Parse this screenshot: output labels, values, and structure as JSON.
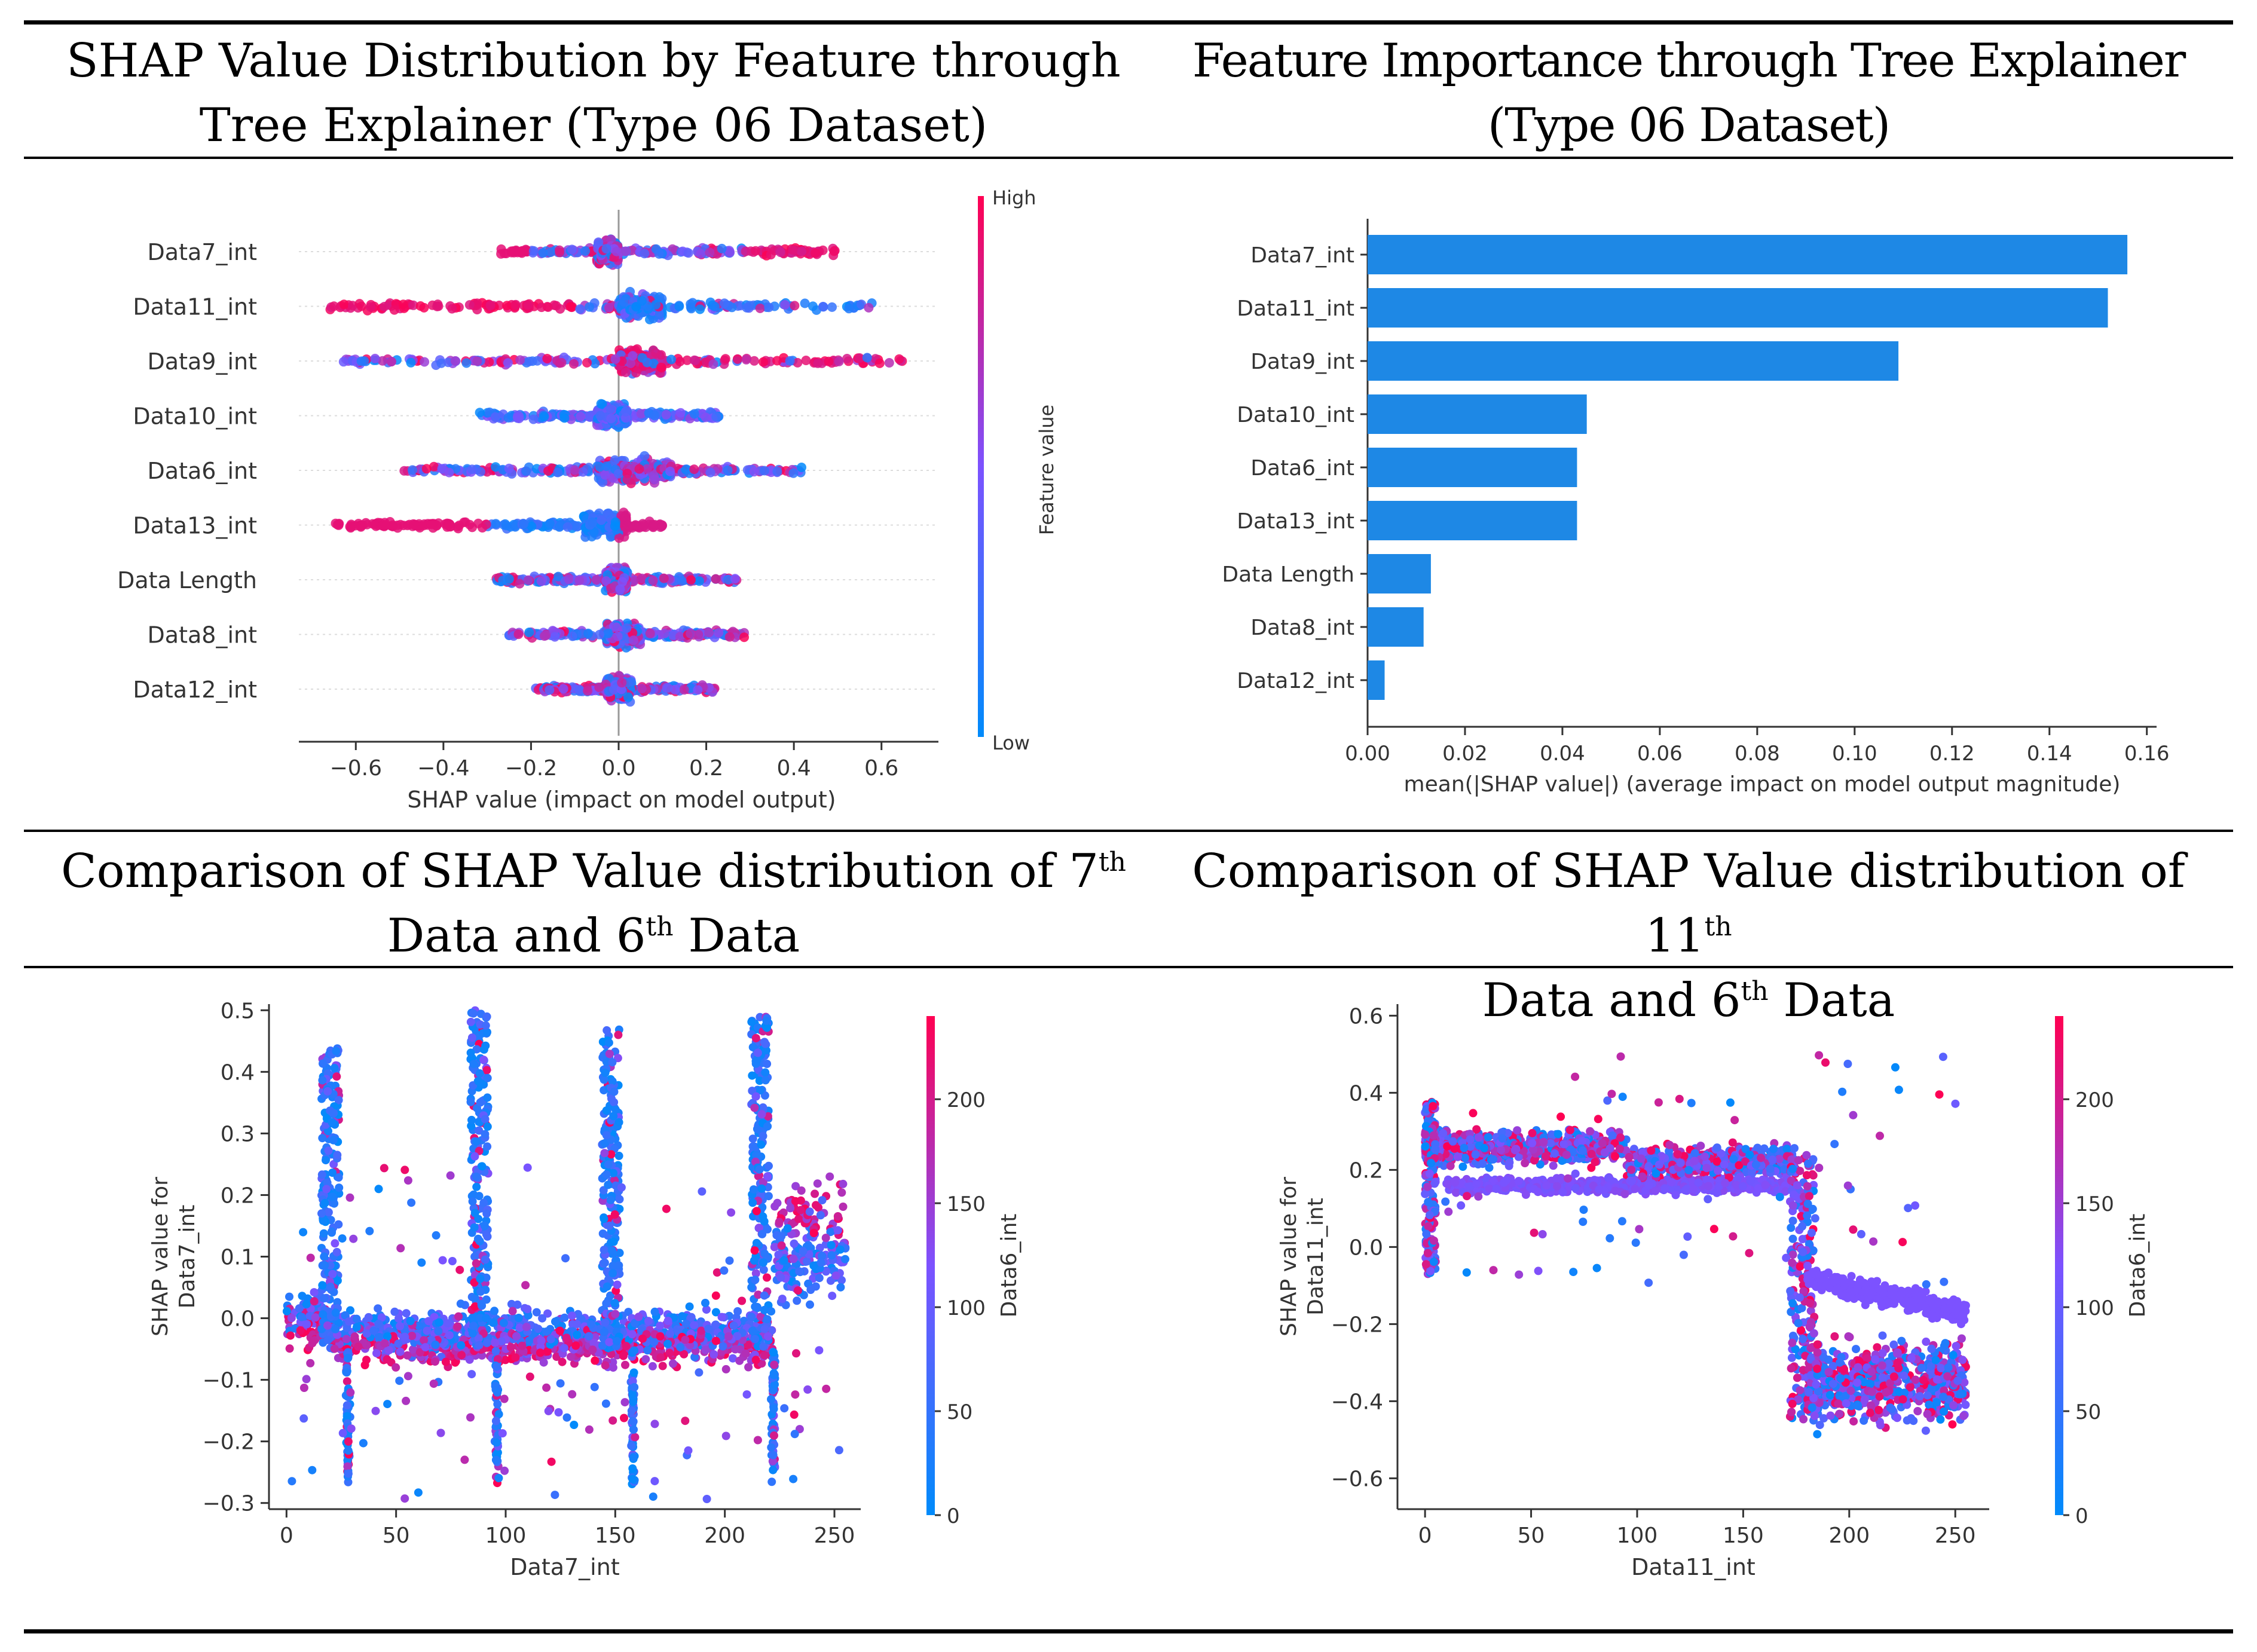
{
  "captions": {
    "top_left_line1": "SHAP Value Distribution by Feature through",
    "top_left_line2": "Tree Explainer (Type 06 Dataset)",
    "top_right_line1": "Feature Importance through Tree Explainer",
    "top_right_line2": "(Type 06 Dataset)",
    "bottom_left_pre": "Comparison of SHAP Value distribution of 7",
    "bottom_left_sup": "th",
    "bottom_left_line2_pre": "Data and 6",
    "bottom_left_line2_sup": "th",
    "bottom_left_line2_post": " Data",
    "bottom_right_pre": "Comparison of SHAP Value distribution of 11",
    "bottom_right_sup": "th",
    "bottom_right_line2_pre": "Data and 6",
    "bottom_right_line2_sup": "th",
    "bottom_right_line2_post": " Data"
  },
  "colors": {
    "low": "#008bfb",
    "high": "#ff0052",
    "mid": "#7c52ff",
    "bar": "#1e88e5"
  },
  "chart_data": [
    {
      "id": "beeswarm",
      "type": "scatter",
      "title": "SHAP Value Distribution by Feature through Tree Explainer (Type 06 Dataset)",
      "xlabel": "SHAP value (impact on model output)",
      "xlim": [
        -0.73,
        0.73
      ],
      "xticks": [
        -0.6,
        -0.4,
        -0.2,
        0.0,
        0.2,
        0.4,
        0.6
      ],
      "xtick_labels": [
        "−0.6",
        "−0.4",
        "−0.2",
        "0.0",
        "0.2",
        "0.4",
        "0.6"
      ],
      "features": [
        {
          "name": "Data7_int",
          "min": -0.27,
          "max": 0.5,
          "dense": [
            -0.05,
            0.0
          ],
          "spread": 0.52
        },
        {
          "name": "Data11_int",
          "min": -0.67,
          "max": 0.58,
          "dense": [
            0.0,
            0.1
          ],
          "spread": 0.6
        },
        {
          "name": "Data9_int",
          "min": -0.65,
          "max": 0.65,
          "dense": [
            0.0,
            0.1
          ],
          "spread": 0.58
        },
        {
          "name": "Data10_int",
          "min": -0.32,
          "max": 0.23,
          "dense": [
            -0.05,
            0.02
          ],
          "spread": 0.35
        },
        {
          "name": "Data6_int",
          "min": -0.49,
          "max": 0.42,
          "dense": [
            -0.05,
            0.12
          ],
          "spread": 0.4
        },
        {
          "name": "Data13_int",
          "min": -0.65,
          "max": 0.1,
          "dense": [
            -0.08,
            0.02
          ],
          "spread": 0.4
        },
        {
          "name": "Data Length",
          "min": -0.28,
          "max": 0.27,
          "dense": [
            -0.03,
            0.02
          ],
          "spread": 0.32
        },
        {
          "name": "Data8_int",
          "min": -0.25,
          "max": 0.29,
          "dense": [
            -0.03,
            0.05
          ],
          "spread": 0.3
        },
        {
          "name": "Data12_int",
          "min": -0.19,
          "max": 0.22,
          "dense": [
            -0.03,
            0.03
          ],
          "spread": 0.25
        }
      ],
      "colorbar": {
        "label": "Feature value",
        "high": "High",
        "low": "Low"
      }
    },
    {
      "id": "importance",
      "type": "bar",
      "title": "Feature Importance through Tree Explainer (Type 06 Dataset)",
      "categories": [
        "Data7_int",
        "Data11_int",
        "Data9_int",
        "Data10_int",
        "Data6_int",
        "Data13_int",
        "Data Length",
        "Data8_int",
        "Data12_int"
      ],
      "values": [
        0.156,
        0.152,
        0.109,
        0.045,
        0.043,
        0.043,
        0.013,
        0.0115,
        0.0035
      ],
      "xlabel": "mean(|SHAP value|) (average impact on model output magnitude)",
      "xlim": [
        0,
        0.162
      ],
      "xticks": [
        0.0,
        0.02,
        0.04,
        0.06,
        0.08,
        0.1,
        0.12,
        0.14,
        0.16
      ],
      "xtick_labels": [
        "0.00",
        "0.02",
        "0.04",
        "0.06",
        "0.08",
        "0.10",
        "0.12",
        "0.14",
        "0.16"
      ]
    },
    {
      "id": "dep7",
      "type": "scatter",
      "title": "Comparison of SHAP Value distribution of 7th Data and 6th Data",
      "xlabel": "Data7_int",
      "ylabel_line1": "SHAP value for",
      "ylabel_line2": "Data7_int",
      "xlim": [
        -8,
        262
      ],
      "ylim": [
        -0.31,
        0.51
      ],
      "xticks": [
        0,
        50,
        100,
        150,
        200,
        250
      ],
      "xtick_labels": [
        "0",
        "50",
        "100",
        "150",
        "200",
        "250"
      ],
      "yticks": [
        -0.3,
        -0.2,
        -0.1,
        0.0,
        0.1,
        0.2,
        0.3,
        0.4,
        0.5
      ],
      "ytick_labels": [
        "−0.3",
        "−0.2",
        "−0.1",
        "0.0",
        "0.1",
        "0.2",
        "0.3",
        "0.4",
        "0.5"
      ],
      "colorbar": {
        "label": "Data6_int",
        "ticks": [
          0,
          50,
          100,
          150,
          200
        ],
        "tick_labels": [
          "0",
          "50",
          "100",
          "150",
          "200"
        ],
        "range": [
          0,
          240
        ]
      },
      "spikes": [
        {
          "x": 22,
          "top": 0.44
        },
        {
          "x": 90,
          "top": 0.5
        },
        {
          "x": 150,
          "top": 0.47
        },
        {
          "x": 218,
          "top": 0.49
        }
      ],
      "troughs": [
        {
          "x": 28,
          "bottom": -0.27
        },
        {
          "x": 96,
          "bottom": -0.27
        },
        {
          "x": 158,
          "bottom": -0.27
        },
        {
          "x": 222,
          "bottom": -0.27
        }
      ]
    },
    {
      "id": "dep11",
      "type": "scatter",
      "title": "Comparison of SHAP Value distribution of 11th Data and 6th Data",
      "xlabel": "Data11_int",
      "ylabel_line1": "SHAP value for",
      "ylabel_line2": "Data11_int",
      "xlim": [
        -13,
        266
      ],
      "ylim": [
        -0.68,
        0.63
      ],
      "xticks": [
        0,
        50,
        100,
        150,
        200,
        250
      ],
      "xtick_labels": [
        "0",
        "50",
        "100",
        "150",
        "200",
        "250"
      ],
      "yticks": [
        -0.6,
        -0.4,
        -0.2,
        0.0,
        0.2,
        0.4,
        0.6
      ],
      "ytick_labels": [
        "−0.6",
        "−0.4",
        "−0.2",
        "0.0",
        "0.2",
        "0.4",
        "0.6"
      ],
      "colorbar": {
        "label": "Data6_int",
        "ticks": [
          0,
          50,
          100,
          150,
          200
        ],
        "tick_labels": [
          "0",
          "50",
          "100",
          "150",
          "200"
        ],
        "range": [
          0,
          240
        ]
      }
    }
  ]
}
